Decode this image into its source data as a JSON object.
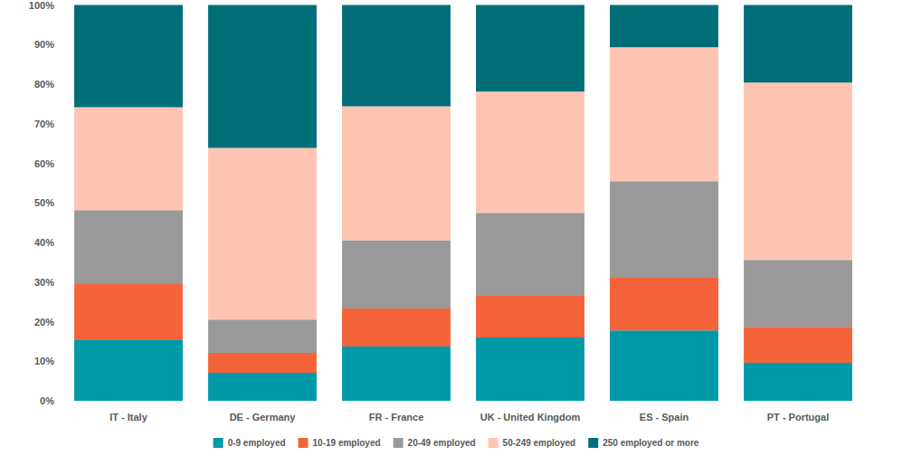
{
  "chart_data": {
    "type": "bar",
    "stacked": true,
    "grid": false,
    "legend": "bottom",
    "categories": [
      "IT - Italy",
      "DE - Germany",
      "FR - France",
      "UK - United Kingdom",
      "ES - Spain",
      "PT - Portugal"
    ],
    "series": [
      {
        "name": "0-9 employed",
        "color": "#0099a8",
        "values": [
          15.5,
          7.1,
          13.7,
          16.0,
          17.8,
          9.6
        ]
      },
      {
        "name": "10-19 employed",
        "color": "#f4633a",
        "values": [
          14.0,
          5.0,
          9.6,
          10.5,
          13.3,
          9.1
        ]
      },
      {
        "name": "20-49 employed",
        "color": "#999999",
        "values": [
          18.7,
          8.4,
          17.3,
          21.0,
          24.4,
          16.9
        ]
      },
      {
        "name": "50-249 employed",
        "color": "#ffc5b2",
        "values": [
          26.0,
          43.4,
          33.8,
          30.6,
          33.8,
          44.8
        ]
      },
      {
        "name": "250 employed or more",
        "color": "#006e78",
        "values": [
          25.8,
          36.1,
          25.6,
          21.9,
          10.7,
          19.6
        ]
      }
    ],
    "ylim": [
      0,
      100
    ],
    "yticks": [
      {
        "value": 0,
        "label": "0%"
      },
      {
        "value": 10,
        "label": "10%"
      },
      {
        "value": 20,
        "label": "20%"
      },
      {
        "value": 30,
        "label": "30%"
      },
      {
        "value": 40,
        "label": "40%"
      },
      {
        "value": 50,
        "label": "50%"
      },
      {
        "value": 60,
        "label": "60%"
      },
      {
        "value": 70,
        "label": "70%"
      },
      {
        "value": 80,
        "label": "80%"
      },
      {
        "value": 90,
        "label": "90%"
      },
      {
        "value": 100,
        "label": "100%"
      }
    ]
  }
}
